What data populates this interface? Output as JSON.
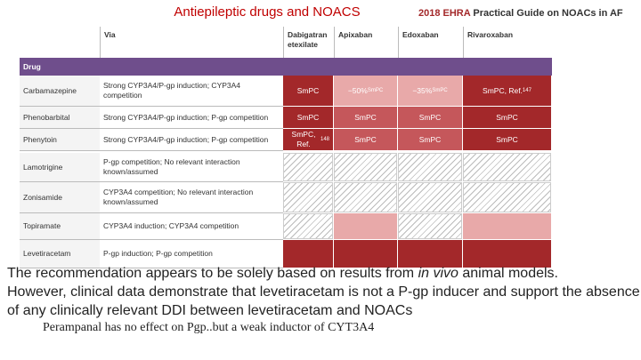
{
  "header": {
    "title": "Antiepileptic drugs and NOACS",
    "guide_year": "2018 EHRA",
    "guide_name": "Practical Guide on NOACs in AF"
  },
  "table": {
    "columns": [
      "Via",
      "Dabigatran etexilate",
      "Apixaban",
      "Edoxaban",
      "Rivaroxaban"
    ],
    "section": "Drug",
    "rows": [
      {
        "drug": "Carbamazepine",
        "via": "Strong CYP3A4/P-gp induction; CYP3A4 competition",
        "cells": [
          {
            "text": "SmPC",
            "color": "#a3282a"
          },
          {
            "text": "−50%",
            "sup": "SmPC",
            "color": "#e8a9a9"
          },
          {
            "text": "−35%",
            "sup": "SmPC",
            "color": "#e8a9a9"
          },
          {
            "text": "SmPC, Ref.",
            "sup": "147",
            "color": "#a3282a"
          }
        ]
      },
      {
        "drug": "Phenobarbital",
        "via": "Strong CYP3A4/P-gp induction; P-gp competition",
        "cells": [
          {
            "text": "SmPC",
            "color": "#a3282a"
          },
          {
            "text": "SmPC",
            "color": "#c5575b"
          },
          {
            "text": "SmPC",
            "color": "#c5575b"
          },
          {
            "text": "SmPC",
            "color": "#a3282a"
          }
        ]
      },
      {
        "drug": "Phenytoin",
        "via": "Strong CYP3A4/P-gp induction; P-gp competition",
        "cells": [
          {
            "text": "SmPC, Ref.",
            "sup": "148",
            "color": "#a3282a"
          },
          {
            "text": "SmPC",
            "color": "#c5575b"
          },
          {
            "text": "SmPC",
            "color": "#c5575b"
          },
          {
            "text": "SmPC",
            "color": "#a3282a"
          }
        ]
      },
      {
        "drug": "Lamotrigine",
        "via": "P-gp competition; No relevant interaction known/assumed",
        "cells": [
          {
            "color": "hatched"
          },
          {
            "color": "hatched"
          },
          {
            "color": "hatched"
          },
          {
            "color": "hatched"
          }
        ]
      },
      {
        "drug": "Zonisamide",
        "via": "CYP3A4 competition; No relevant interaction known/assumed",
        "cells": [
          {
            "color": "hatched"
          },
          {
            "color": "hatched"
          },
          {
            "color": "hatched"
          },
          {
            "color": "hatched"
          }
        ]
      },
      {
        "drug": "Topiramate",
        "via": "CYP3A4 induction; CYP3A4 competition",
        "cells": [
          {
            "color": "hatched"
          },
          {
            "color": "#e8a9a9"
          },
          {
            "color": "hatched"
          },
          {
            "color": "#e8a9a9"
          }
        ]
      },
      {
        "drug": "Levetiracetam",
        "via": "P-gp induction; P-gp competition",
        "cells": [
          {
            "color": "#a3282a"
          },
          {
            "color": "#a3282a"
          },
          {
            "color": "#a3282a"
          },
          {
            "color": "#a3282a"
          }
        ]
      }
    ]
  },
  "text": {
    "line1": [
      "The recommendation appears to be solely based on results from ",
      "in vivo",
      " animal models."
    ],
    "line2": "However, clinical data demonstrate that levetiracetam is not a P-gp inducer and support the absence of any clinically relevant DDI between levetiracetam and NOACs",
    "note": "Perampanal has no effect on Pgp..but a weak inductor of CYT3A4"
  }
}
